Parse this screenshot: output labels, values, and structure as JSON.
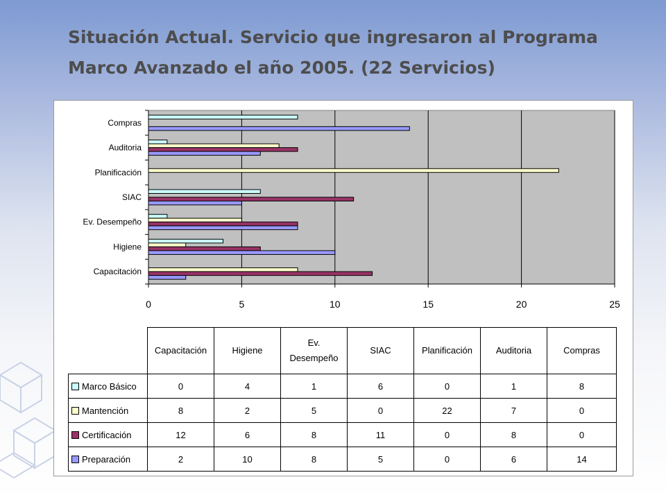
{
  "title": "Situación Actual. Servicio que ingresaron al Programa Marco Avanzado el año 2005. (22 Servicios)",
  "chart_data": {
    "type": "bar",
    "orientation": "horizontal",
    "categories": [
      "Capacitación",
      "Higiene",
      "Ev. Desempeño",
      "SIAC",
      "Planificación",
      "Auditoria",
      "Compras"
    ],
    "series": [
      {
        "name": "Marco Básico",
        "color": "#ccffff",
        "values": [
          0,
          4,
          1,
          6,
          0,
          1,
          8
        ]
      },
      {
        "name": "Mantención",
        "color": "#ffffcc",
        "values": [
          8,
          2,
          5,
          0,
          22,
          7,
          0
        ]
      },
      {
        "name": "Certificación",
        "color": "#993366",
        "values": [
          12,
          6,
          8,
          11,
          0,
          8,
          0
        ]
      },
      {
        "name": "Preparación",
        "color": "#9999ff",
        "values": [
          2,
          10,
          8,
          5,
          0,
          6,
          14
        ]
      }
    ],
    "xlim": [
      0,
      25
    ],
    "xticks": [
      0,
      5,
      10,
      15,
      20,
      25
    ],
    "grid": true,
    "plot_background": "#c0c0c0",
    "legend": "data table below chart",
    "table": {
      "headers": [
        "Capacitación",
        "Higiene",
        "Ev. Desempeño",
        "SIAC",
        "Planificación",
        "Auditoria",
        "Compras"
      ],
      "header_lines": [
        [
          "Capacitación"
        ],
        [
          "Higiene"
        ],
        [
          "Ev.",
          "Desempeño"
        ],
        [
          "SIAC"
        ],
        [
          "Planificación"
        ],
        [
          "Auditoria"
        ],
        [
          "Compras"
        ]
      ]
    }
  }
}
